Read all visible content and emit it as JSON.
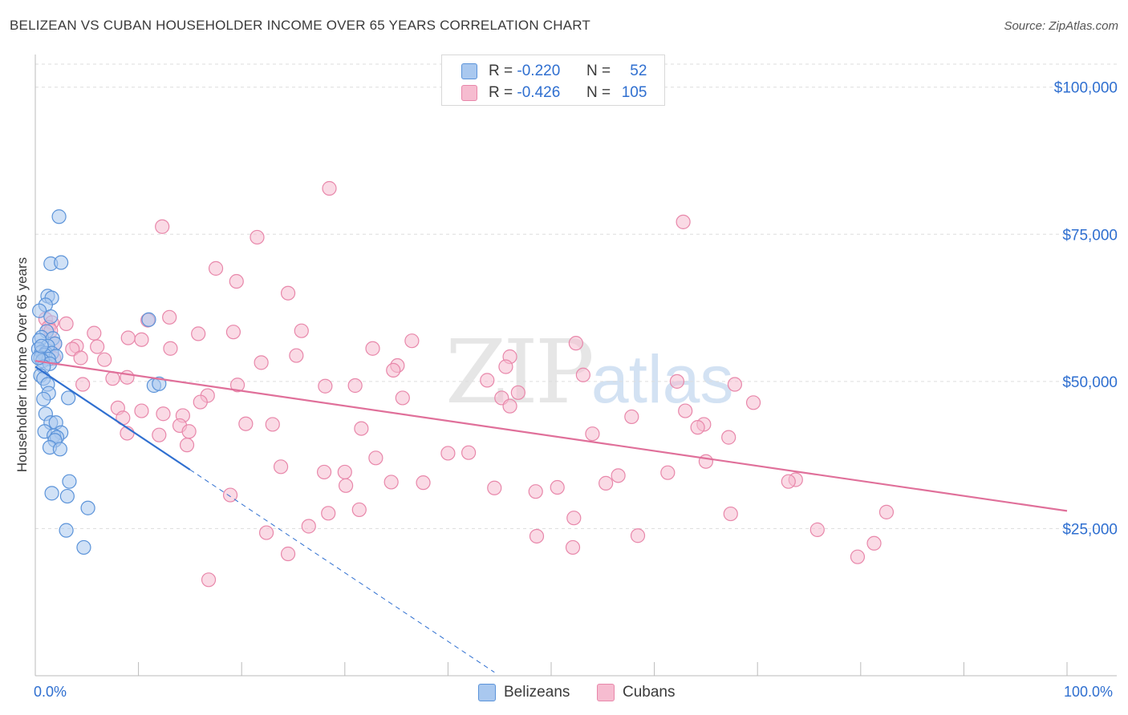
{
  "title": "BELIZEAN VS CUBAN HOUSEHOLDER INCOME OVER 65 YEARS CORRELATION CHART",
  "source": "Source: ZipAtlas.com",
  "watermark": {
    "zip": "ZIP",
    "atlas": "atlas"
  },
  "legend": {
    "r_label": "R =",
    "n_label": "N =",
    "belizeans": {
      "r": "-0.220",
      "n": "52"
    },
    "cubans": {
      "r": "-0.426",
      "n": "105"
    }
  },
  "colors": {
    "belizeans_fill": "#a9c8ef",
    "belizeans_stroke": "#5b93d9",
    "belizeans_line": "#2f6fd0",
    "cubans_fill": "#f6bcd0",
    "cubans_stroke": "#e887aa",
    "cubans_line": "#e0709a",
    "axis_text": "#2f6fd0",
    "grid": "#dddddd"
  },
  "chart_data": {
    "type": "scatter",
    "title": "BELIZEAN VS CUBAN HOUSEHOLDER INCOME OVER 65 YEARS CORRELATION CHART",
    "xlabel": "",
    "ylabel": "Householder Income Over 65 years",
    "xlim": [
      0,
      100
    ],
    "ylim": [
      0,
      105000
    ],
    "x_tick_labels": [
      "0.0%",
      "100.0%"
    ],
    "y_ticks": [
      25000,
      50000,
      75000,
      100000
    ],
    "y_tick_labels": [
      "$25,000",
      "$50,000",
      "$75,000",
      "$100,000"
    ],
    "legend_position": "bottom",
    "series": [
      {
        "name": "Belizeans",
        "r": -0.22,
        "n": 52,
        "trend": {
          "x0": 0,
          "y0": 52500,
          "x1": 15,
          "y1": 35000,
          "dashed_to_x": 44.5
        },
        "points": [
          [
            2.3,
            78000
          ],
          [
            1.5,
            70000
          ],
          [
            2.5,
            70200
          ],
          [
            1.2,
            64500
          ],
          [
            1.6,
            64200
          ],
          [
            1.0,
            63000
          ],
          [
            0.4,
            62000
          ],
          [
            1.5,
            61000
          ],
          [
            11.0,
            60500
          ],
          [
            1.1,
            58500
          ],
          [
            0.6,
            57500
          ],
          [
            1.7,
            57300
          ],
          [
            0.4,
            57000
          ],
          [
            1.9,
            56400
          ],
          [
            1.2,
            56000
          ],
          [
            0.3,
            55500
          ],
          [
            0.6,
            55000
          ],
          [
            1.0,
            54800
          ],
          [
            1.6,
            54800
          ],
          [
            0.9,
            54500
          ],
          [
            2.0,
            54300
          ],
          [
            0.5,
            54000
          ],
          [
            1.3,
            53800
          ],
          [
            0.7,
            53500
          ],
          [
            1.4,
            53000
          ],
          [
            0.8,
            52500
          ],
          [
            0.5,
            51000
          ],
          [
            0.8,
            50500
          ],
          [
            1.2,
            49500
          ],
          [
            11.5,
            49300
          ],
          [
            12.0,
            49600
          ],
          [
            1.3,
            48000
          ],
          [
            3.2,
            47200
          ],
          [
            0.8,
            47000
          ],
          [
            1.0,
            44500
          ],
          [
            1.5,
            43000
          ],
          [
            2.0,
            43000
          ],
          [
            0.9,
            41500
          ],
          [
            2.5,
            41300
          ],
          [
            1.8,
            40800
          ],
          [
            2.1,
            40500
          ],
          [
            1.9,
            40000
          ],
          [
            1.4,
            38800
          ],
          [
            2.4,
            38500
          ],
          [
            3.3,
            33000
          ],
          [
            1.6,
            31000
          ],
          [
            3.1,
            30500
          ],
          [
            5.1,
            28500
          ],
          [
            3.0,
            24700
          ],
          [
            4.7,
            21800
          ],
          [
            0.3,
            54000
          ],
          [
            0.6,
            56000
          ]
        ]
      },
      {
        "name": "Cubans",
        "r": -0.426,
        "n": 105,
        "trend": {
          "x0": 0,
          "y0": 53500,
          "x1": 100,
          "y1": 28000
        },
        "points": [
          [
            28.5,
            82800
          ],
          [
            62.8,
            77100
          ],
          [
            12.3,
            76300
          ],
          [
            21.5,
            74500
          ],
          [
            17.5,
            69200
          ],
          [
            19.5,
            67000
          ],
          [
            24.5,
            65000
          ],
          [
            13.0,
            60900
          ],
          [
            10.9,
            60400
          ],
          [
            1.0,
            60600
          ],
          [
            1.6,
            60000
          ],
          [
            3.0,
            59800
          ],
          [
            1.3,
            59200
          ],
          [
            1.5,
            58600
          ],
          [
            5.7,
            58200
          ],
          [
            15.8,
            58100
          ],
          [
            19.2,
            58400
          ],
          [
            25.8,
            58600
          ],
          [
            9.0,
            57400
          ],
          [
            10.3,
            57100
          ],
          [
            36.5,
            56900
          ],
          [
            52.4,
            56500
          ],
          [
            1.9,
            56400
          ],
          [
            4.0,
            56000
          ],
          [
            6.0,
            55900
          ],
          [
            3.6,
            55500
          ],
          [
            13.1,
            55600
          ],
          [
            32.7,
            55600
          ],
          [
            46.0,
            54200
          ],
          [
            25.3,
            54400
          ],
          [
            1.8,
            53900
          ],
          [
            4.4,
            54000
          ],
          [
            6.7,
            53700
          ],
          [
            21.9,
            53200
          ],
          [
            35.1,
            52700
          ],
          [
            45.6,
            52500
          ],
          [
            34.7,
            51900
          ],
          [
            53.1,
            51100
          ],
          [
            8.9,
            50700
          ],
          [
            7.5,
            50500
          ],
          [
            43.8,
            50200
          ],
          [
            62.2,
            50000
          ],
          [
            4.6,
            49500
          ],
          [
            19.6,
            49400
          ],
          [
            28.1,
            49200
          ],
          [
            31.0,
            49300
          ],
          [
            67.8,
            49500
          ],
          [
            46.8,
            48100
          ],
          [
            16.7,
            47600
          ],
          [
            45.2,
            47200
          ],
          [
            35.6,
            47200
          ],
          [
            16.0,
            46500
          ],
          [
            69.6,
            46400
          ],
          [
            46.0,
            45800
          ],
          [
            8.0,
            45500
          ],
          [
            10.3,
            45000
          ],
          [
            12.4,
            44500
          ],
          [
            14.3,
            44200
          ],
          [
            63.0,
            45000
          ],
          [
            8.5,
            43800
          ],
          [
            57.8,
            44000
          ],
          [
            14.0,
            42500
          ],
          [
            20.4,
            42800
          ],
          [
            23.0,
            42700
          ],
          [
            64.8,
            42700
          ],
          [
            64.2,
            42200
          ],
          [
            31.6,
            42000
          ],
          [
            14.9,
            41500
          ],
          [
            8.9,
            41200
          ],
          [
            12.0,
            40900
          ],
          [
            54.0,
            41100
          ],
          [
            67.2,
            40500
          ],
          [
            14.7,
            39200
          ],
          [
            40.0,
            37800
          ],
          [
            42.0,
            37900
          ],
          [
            33.0,
            37000
          ],
          [
            65.0,
            36400
          ],
          [
            23.8,
            35500
          ],
          [
            28.0,
            34600
          ],
          [
            30.0,
            34600
          ],
          [
            61.3,
            34500
          ],
          [
            56.5,
            34000
          ],
          [
            55.3,
            32700
          ],
          [
            73.7,
            33300
          ],
          [
            30.1,
            32300
          ],
          [
            34.5,
            32900
          ],
          [
            37.6,
            32800
          ],
          [
            44.5,
            31900
          ],
          [
            50.6,
            32000
          ],
          [
            18.9,
            30700
          ],
          [
            28.4,
            27600
          ],
          [
            31.4,
            28200
          ],
          [
            48.5,
            31300
          ],
          [
            73.0,
            33000
          ],
          [
            82.5,
            27800
          ],
          [
            67.4,
            27500
          ],
          [
            52.2,
            26800
          ],
          [
            26.5,
            25400
          ],
          [
            22.4,
            24300
          ],
          [
            48.6,
            23700
          ],
          [
            58.4,
            23800
          ],
          [
            75.8,
            24800
          ],
          [
            81.3,
            22500
          ],
          [
            52.1,
            21800
          ],
          [
            24.5,
            20700
          ],
          [
            79.7,
            20200
          ],
          [
            16.8,
            16300
          ]
        ]
      }
    ]
  }
}
